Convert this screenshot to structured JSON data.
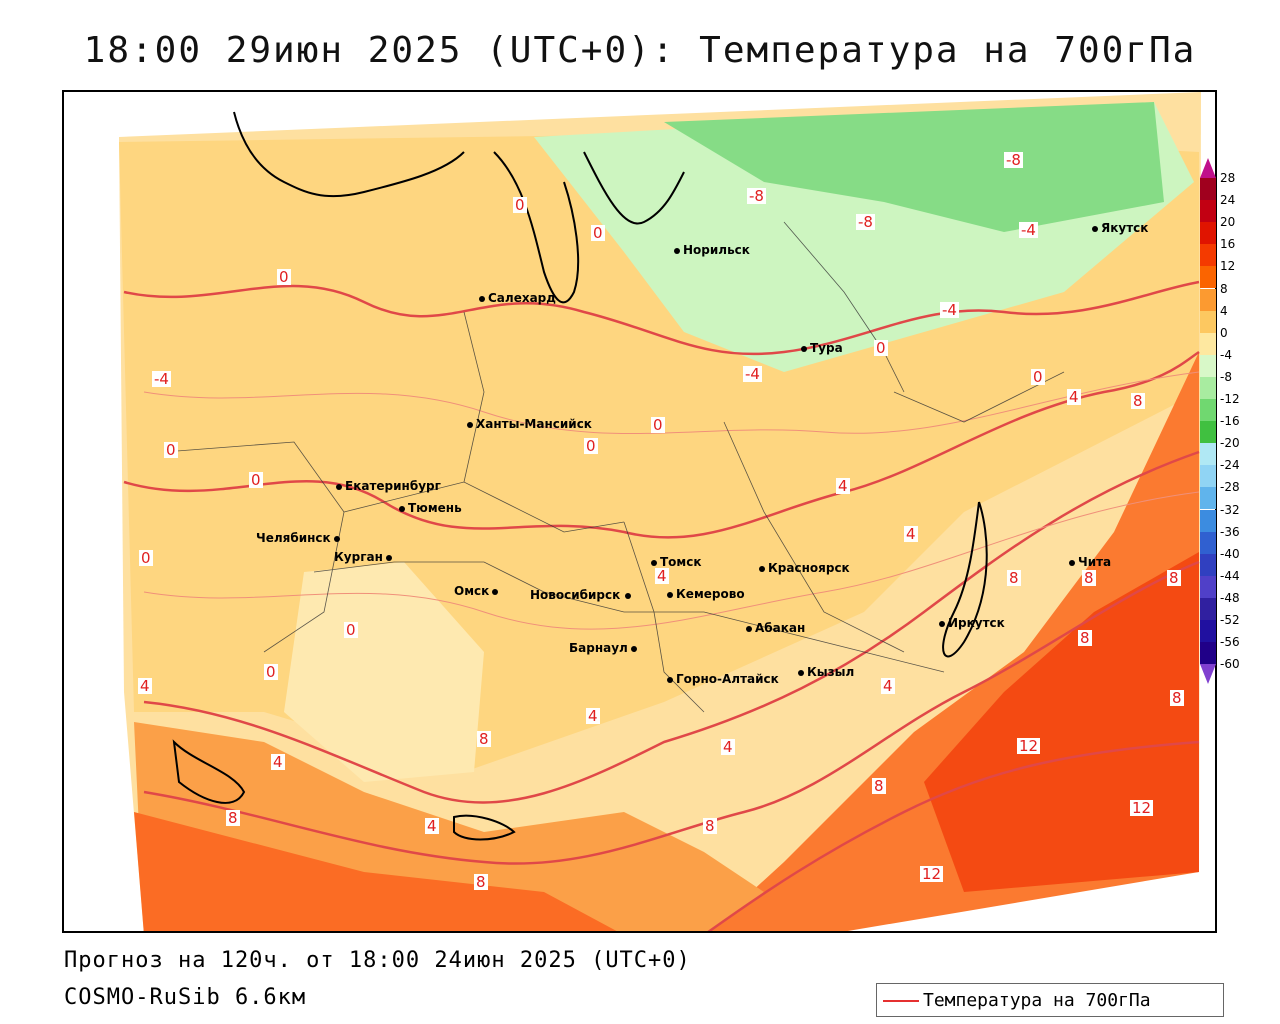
{
  "title": "18:00 29июн 2025 (UTC+0): Температура на 700гПа",
  "footer": {
    "forecast": "Прогноз на 120ч. от 18:00 24июн 2025 (UTC+0)",
    "model": "COSMO-RuSib 6.6км"
  },
  "legend": {
    "label": "Температура на 700гПа",
    "line_color": "#e53030"
  },
  "colorbar": {
    "ticks": [
      "28",
      "24",
      "20",
      "16",
      "12",
      "8",
      "4",
      "0",
      "-4",
      "-8",
      "-12",
      "-16",
      "-20",
      "-24",
      "-28",
      "-32",
      "-36",
      "-40",
      "-44",
      "-48",
      "-52",
      "-56",
      "-60"
    ],
    "colors": [
      "#a0001e",
      "#c20012",
      "#e01400",
      "#f43a00",
      "#fb6400",
      "#fc9a30",
      "#fdc860",
      "#fee8a0",
      "#d8f8c8",
      "#a8eca0",
      "#70d870",
      "#40c040",
      "#b0e8f4",
      "#90d4f4",
      "#60b4ec",
      "#3c8ce0",
      "#3060d0",
      "#3040c0",
      "#5040c8",
      "#3020a0",
      "#2010a0",
      "#200088"
    ]
  },
  "cities": [
    {
      "name": "Норильск"
    },
    {
      "name": "Якутск"
    },
    {
      "name": "Салехард"
    },
    {
      "name": "Тура"
    },
    {
      "name": "Ханты-Мансийск"
    },
    {
      "name": "Екатеринбург"
    },
    {
      "name": "Тюмень"
    },
    {
      "name": "Челябинск"
    },
    {
      "name": "Курган"
    },
    {
      "name": "Омск"
    },
    {
      "name": "Новосибирск"
    },
    {
      "name": "Томск"
    },
    {
      "name": "Кемерово"
    },
    {
      "name": "Красноярск"
    },
    {
      "name": "Барнаул"
    },
    {
      "name": "Абакан"
    },
    {
      "name": "Горно-Алтайск"
    },
    {
      "name": "Кызыл"
    },
    {
      "name": "Иркутск"
    },
    {
      "name": "Чита"
    }
  ],
  "contour_labels": [
    "-8",
    "-8",
    "-8",
    "-4",
    "-4",
    "-4",
    "-4",
    "0",
    "0",
    "0",
    "0",
    "0",
    "0",
    "0",
    "0",
    "0",
    "0",
    "0",
    "0",
    "4",
    "4",
    "4",
    "4",
    "4",
    "4",
    "4",
    "4",
    "4",
    "4",
    "8",
    "8",
    "8",
    "8",
    "8",
    "8",
    "8",
    "8",
    "8",
    "8",
    "8",
    "12",
    "12",
    "12"
  ]
}
